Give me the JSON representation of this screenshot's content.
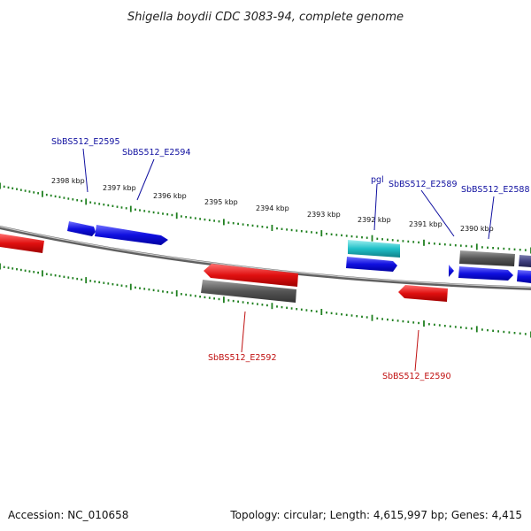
{
  "title": "Shigella boydii CDC 3083-94, complete genome",
  "footer": {
    "accession": "Accession: NC_010658",
    "summary": "Topology: circular; Length: 4,615,997 bp; Genes: 4,415"
  },
  "colors": {
    "forward_gene": "#1010d8",
    "reverse_gene": "#e01010",
    "rna_gene": "#18b8c0",
    "pseudo_gene": "#606060",
    "forward_label": "#1010a0",
    "reverse_label": "#c01010",
    "tick": "#208020",
    "backbone": "#909090"
  },
  "scale_labels": [
    "2398 kbp",
    "2397 kbp",
    "2396 kbp",
    "2395 kbp",
    "2394 kbp",
    "2393 kbp",
    "2392 kbp",
    "2391 kbp",
    "2390 kbp"
  ],
  "gene_labels": {
    "e2595": "SbBS512_E2595",
    "e2594": "SbBS512_E2594",
    "pgl": "pgl",
    "e2589": "SbBS512_E2589",
    "e2588": "SbBS512_E2588",
    "e2592": "SbBS512_E2592",
    "e2590": "SbBS512_E2590"
  }
}
